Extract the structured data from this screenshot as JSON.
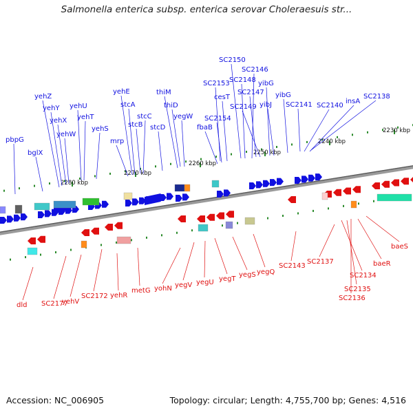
{
  "title": "Salmonella enterica subsp. enterica serovar Choleraesuis str...",
  "accession": "Accession: NC_006905",
  "topology": "Topology: circular; Length: 4,755,700 bp; Genes: 4,516",
  "colors": {
    "forward": "#1010e0",
    "reverse": "#e01010",
    "backbone": "#707070",
    "tick": "#2a8a2a"
  },
  "scale_labels": [
    "2280 kbp",
    "2270 kbp",
    "2260 kbp",
    "2250 kbp",
    "2240 kbp",
    "2230 kbp"
  ],
  "forward_labels": [
    "pbpG",
    "bglX",
    "yehZ",
    "yehY",
    "yehX",
    "yehW",
    "yehU",
    "yehT",
    "yehS",
    "mrp",
    "yehE",
    "stcA",
    "stcB",
    "stcC",
    "stcD",
    "thiM",
    "thiD",
    "yegW",
    "fbaB",
    "SC2154",
    "SC2153",
    "cesT",
    "SC2150",
    "SC2148",
    "SC2146",
    "SC2147",
    "SC2149",
    "yibG",
    "yibJ",
    "yibG",
    "SC2141",
    "SC2140",
    "insA",
    "SC2138"
  ],
  "reverse_labels": [
    "dld",
    "SC2177",
    "yehV",
    "SC2172",
    "yehR",
    "metG",
    "yohN",
    "yegV",
    "yegU",
    "yegT",
    "yegS",
    "yegQ",
    "SC2143",
    "SC2137",
    "SC2134",
    "SC2135",
    "SC2136",
    "baeR",
    "baeS"
  ]
}
